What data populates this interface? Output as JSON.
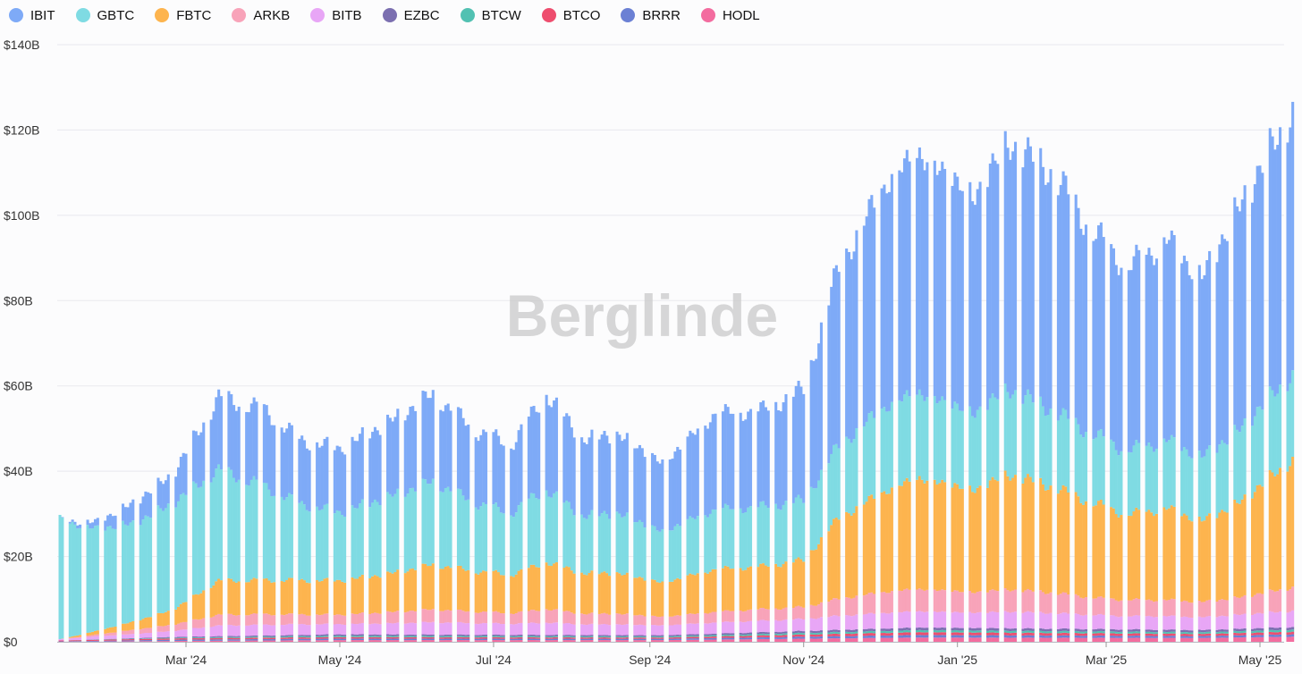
{
  "watermark": "Berglinde",
  "chart_data": {
    "type": "bar",
    "stacked": true,
    "title": "",
    "xlabel": "",
    "ylabel": "",
    "ylim": [
      0,
      140
    ],
    "y_unit": "billion USD",
    "y_ticks": [
      {
        "value": 0,
        "label": "$0"
      },
      {
        "value": 20,
        "label": "$20B"
      },
      {
        "value": 40,
        "label": "$40B"
      },
      {
        "value": 60,
        "label": "$60B"
      },
      {
        "value": 80,
        "label": "$80B"
      },
      {
        "value": 100,
        "label": "$100B"
      },
      {
        "value": 120,
        "label": "$120B"
      },
      {
        "value": 140,
        "label": "$140B"
      }
    ],
    "x_range": [
      "2024-01-11",
      "2025-05-14"
    ],
    "x_ticks": [
      {
        "date": "2024-03-01",
        "label": "Mar '24"
      },
      {
        "date": "2024-05-01",
        "label": "May '24"
      },
      {
        "date": "2024-07-01",
        "label": "Jul '24"
      },
      {
        "date": "2024-09-01",
        "label": "Sep '24"
      },
      {
        "date": "2024-11-01",
        "label": "Nov '24"
      },
      {
        "date": "2025-01-01",
        "label": "Jan '25"
      },
      {
        "date": "2025-03-01",
        "label": "Mar '25"
      },
      {
        "date": "2025-05-01",
        "label": "May '25"
      }
    ],
    "grid": true,
    "legend_position": "top-left",
    "stack_order_bottom_to_top": [
      "HODL",
      "BRRR",
      "BTCO",
      "BTCW",
      "EZBC",
      "BITB",
      "ARKB",
      "FBTC",
      "GBTC",
      "IBIT"
    ],
    "series": [
      {
        "name": "IBIT",
        "color": "#7eaaf7",
        "anchors": [
          [
            "2024-01-11",
            0
          ],
          [
            "2024-01-25",
            1.5
          ],
          [
            "2024-02-10",
            5
          ],
          [
            "2024-02-25",
            7
          ],
          [
            "2024-03-14",
            17
          ],
          [
            "2024-04-01",
            18
          ],
          [
            "2024-04-15",
            15
          ],
          [
            "2024-05-01",
            15
          ],
          [
            "2024-05-20",
            17.5
          ],
          [
            "2024-06-07",
            20.5
          ],
          [
            "2024-06-24",
            17
          ],
          [
            "2024-07-08",
            16
          ],
          [
            "2024-07-15",
            19
          ],
          [
            "2024-07-22",
            22.5
          ],
          [
            "2024-08-05",
            18
          ],
          [
            "2024-08-20",
            18.5
          ],
          [
            "2024-09-06",
            16
          ],
          [
            "2024-09-27",
            22.5
          ],
          [
            "2024-10-15",
            22.5
          ],
          [
            "2024-11-01",
            26
          ],
          [
            "2024-11-15",
            42
          ],
          [
            "2024-12-05",
            53
          ],
          [
            "2024-12-17",
            56
          ],
          [
            "2025-01-08",
            51
          ],
          [
            "2025-01-21",
            58
          ],
          [
            "2025-02-07",
            56
          ],
          [
            "2025-02-25",
            47
          ],
          [
            "2025-03-10",
            43
          ],
          [
            "2025-03-25",
            47
          ],
          [
            "2025-04-08",
            42
          ],
          [
            "2025-04-22",
            52
          ],
          [
            "2025-05-14",
            62
          ]
        ]
      },
      {
        "name": "GBTC",
        "color": "#7fdbe3",
        "anchors": [
          [
            "2024-01-11",
            28
          ],
          [
            "2024-01-25",
            24
          ],
          [
            "2024-02-10",
            23
          ],
          [
            "2024-02-25",
            25
          ],
          [
            "2024-03-14",
            26
          ],
          [
            "2024-04-01",
            22
          ],
          [
            "2024-04-15",
            18
          ],
          [
            "2024-05-01",
            16
          ],
          [
            "2024-05-20",
            18
          ],
          [
            "2024-06-07",
            19.5
          ],
          [
            "2024-06-24",
            16
          ],
          [
            "2024-07-08",
            14.5
          ],
          [
            "2024-07-15",
            16
          ],
          [
            "2024-07-22",
            17
          ],
          [
            "2024-08-05",
            13.5
          ],
          [
            "2024-08-20",
            14
          ],
          [
            "2024-09-06",
            12
          ],
          [
            "2024-09-27",
            14
          ],
          [
            "2024-10-15",
            14
          ],
          [
            "2024-11-01",
            14
          ],
          [
            "2024-11-15",
            17
          ],
          [
            "2024-12-05",
            20
          ],
          [
            "2024-12-17",
            20
          ],
          [
            "2025-01-08",
            18
          ],
          [
            "2025-01-21",
            20
          ],
          [
            "2025-02-07",
            18
          ],
          [
            "2025-02-25",
            16
          ],
          [
            "2025-03-10",
            15
          ],
          [
            "2025-03-25",
            16
          ],
          [
            "2025-04-08",
            15
          ],
          [
            "2025-04-22",
            17
          ],
          [
            "2025-05-14",
            20
          ]
        ]
      },
      {
        "name": "FBTC",
        "color": "#fdb44e",
        "anchors": [
          [
            "2024-01-11",
            0
          ],
          [
            "2024-01-25",
            0.8
          ],
          [
            "2024-02-10",
            2
          ],
          [
            "2024-02-25",
            3.5
          ],
          [
            "2024-03-14",
            8
          ],
          [
            "2024-04-01",
            8
          ],
          [
            "2024-04-15",
            8
          ],
          [
            "2024-05-01",
            8
          ],
          [
            "2024-05-20",
            9
          ],
          [
            "2024-06-07",
            10.5
          ],
          [
            "2024-06-24",
            9.5
          ],
          [
            "2024-07-08",
            9
          ],
          [
            "2024-07-15",
            10
          ],
          [
            "2024-07-22",
            11
          ],
          [
            "2024-08-05",
            9.5
          ],
          [
            "2024-08-20",
            9.5
          ],
          [
            "2024-09-06",
            8
          ],
          [
            "2024-09-27",
            10
          ],
          [
            "2024-10-15",
            10
          ],
          [
            "2024-11-01",
            11
          ],
          [
            "2024-11-15",
            19
          ],
          [
            "2024-12-05",
            24
          ],
          [
            "2024-12-17",
            26
          ],
          [
            "2025-01-08",
            24
          ],
          [
            "2025-01-21",
            27
          ],
          [
            "2025-02-07",
            25
          ],
          [
            "2025-02-25",
            22
          ],
          [
            "2025-03-10",
            20
          ],
          [
            "2025-03-25",
            21.5
          ],
          [
            "2025-04-08",
            19
          ],
          [
            "2025-04-22",
            22
          ],
          [
            "2025-05-14",
            30
          ]
        ]
      },
      {
        "name": "ARKB",
        "color": "#f8a3b9",
        "anchors": [
          [
            "2024-01-11",
            0
          ],
          [
            "2024-01-25",
            0.4
          ],
          [
            "2024-02-10",
            1
          ],
          [
            "2024-02-25",
            1.5
          ],
          [
            "2024-03-14",
            2.5
          ],
          [
            "2024-04-01",
            2.5
          ],
          [
            "2024-04-15",
            2.3
          ],
          [
            "2024-05-01",
            2.2
          ],
          [
            "2024-05-20",
            2.6
          ],
          [
            "2024-06-07",
            3
          ],
          [
            "2024-06-24",
            2.7
          ],
          [
            "2024-07-08",
            2.5
          ],
          [
            "2024-07-15",
            2.8
          ],
          [
            "2024-07-22",
            3.2
          ],
          [
            "2024-08-05",
            2.5
          ],
          [
            "2024-08-20",
            2.5
          ],
          [
            "2024-09-06",
            2
          ],
          [
            "2024-09-27",
            2.5
          ],
          [
            "2024-10-15",
            2.7
          ],
          [
            "2024-11-01",
            2.8
          ],
          [
            "2024-11-15",
            4
          ],
          [
            "2024-12-05",
            5
          ],
          [
            "2024-12-17",
            5.2
          ],
          [
            "2025-01-08",
            4.8
          ],
          [
            "2025-01-21",
            5.2
          ],
          [
            "2025-02-07",
            4.8
          ],
          [
            "2025-02-25",
            4
          ],
          [
            "2025-03-10",
            3.8
          ],
          [
            "2025-03-25",
            3.8
          ],
          [
            "2025-04-08",
            3.6
          ],
          [
            "2025-04-22",
            4
          ],
          [
            "2025-05-14",
            5.5
          ]
        ]
      },
      {
        "name": "BITB",
        "color": "#e8a6f6",
        "anchors": [
          [
            "2024-01-11",
            0.3
          ],
          [
            "2024-01-25",
            0.7
          ],
          [
            "2024-02-10",
            1
          ],
          [
            "2024-02-25",
            1.4
          ],
          [
            "2024-03-14",
            2.5
          ],
          [
            "2024-04-01",
            2.5
          ],
          [
            "2024-04-15",
            2.5
          ],
          [
            "2024-05-01",
            2.4
          ],
          [
            "2024-05-20",
            2.6
          ],
          [
            "2024-06-07",
            2.9
          ],
          [
            "2024-06-24",
            2.7
          ],
          [
            "2024-07-08",
            2.6
          ],
          [
            "2024-07-15",
            2.7
          ],
          [
            "2024-07-22",
            2.9
          ],
          [
            "2024-08-05",
            2.5
          ],
          [
            "2024-08-20",
            2.5
          ],
          [
            "2024-09-06",
            2.3
          ],
          [
            "2024-09-27",
            2.6
          ],
          [
            "2024-10-15",
            2.7
          ],
          [
            "2024-11-01",
            2.8
          ],
          [
            "2024-11-15",
            3.3
          ],
          [
            "2024-12-05",
            3.7
          ],
          [
            "2024-12-17",
            3.8
          ],
          [
            "2025-01-08",
            3.6
          ],
          [
            "2025-01-21",
            3.9
          ],
          [
            "2025-02-07",
            3.7
          ],
          [
            "2025-02-25",
            3.3
          ],
          [
            "2025-03-10",
            3.1
          ],
          [
            "2025-03-25",
            3.2
          ],
          [
            "2025-04-08",
            3
          ],
          [
            "2025-04-22",
            3.3
          ],
          [
            "2025-05-14",
            3.8
          ]
        ]
      },
      {
        "name": "EZBC",
        "color": "#7b6fb0",
        "anchors": [
          [
            "2024-01-11",
            0
          ],
          [
            "2024-02-25",
            0.2
          ],
          [
            "2024-05-01",
            0.35
          ],
          [
            "2024-09-06",
            0.3
          ],
          [
            "2024-12-17",
            0.6
          ],
          [
            "2025-04-08",
            0.5
          ],
          [
            "2025-05-14",
            0.6
          ]
        ]
      },
      {
        "name": "BTCW",
        "color": "#52c1b2",
        "anchors": [
          [
            "2024-01-11",
            0
          ],
          [
            "2024-02-25",
            0.15
          ],
          [
            "2024-05-01",
            0.3
          ],
          [
            "2024-09-06",
            0.25
          ],
          [
            "2024-12-17",
            0.5
          ],
          [
            "2025-04-08",
            0.4
          ],
          [
            "2025-05-14",
            0.5
          ]
        ]
      },
      {
        "name": "BTCO",
        "color": "#ee4d6e",
        "anchors": [
          [
            "2024-01-11",
            0.2
          ],
          [
            "2024-02-25",
            0.3
          ],
          [
            "2024-05-01",
            0.35
          ],
          [
            "2024-09-06",
            0.3
          ],
          [
            "2024-12-17",
            0.65
          ],
          [
            "2025-04-08",
            0.5
          ],
          [
            "2025-05-14",
            0.6
          ]
        ]
      },
      {
        "name": "BRRR",
        "color": "#6b80d4",
        "anchors": [
          [
            "2024-01-11",
            0.1
          ],
          [
            "2024-02-25",
            0.3
          ],
          [
            "2024-05-01",
            0.35
          ],
          [
            "2024-09-06",
            0.3
          ],
          [
            "2024-12-17",
            0.6
          ],
          [
            "2025-04-08",
            0.45
          ],
          [
            "2025-05-14",
            0.55
          ]
        ]
      },
      {
        "name": "HODL",
        "color": "#f36c9f",
        "anchors": [
          [
            "2024-01-11",
            0
          ],
          [
            "2024-02-25",
            0.2
          ],
          [
            "2024-05-01",
            0.4
          ],
          [
            "2024-09-06",
            0.4
          ],
          [
            "2024-12-17",
            1
          ],
          [
            "2025-04-08",
            0.9
          ],
          [
            "2025-05-14",
            1.2
          ]
        ]
      }
    ]
  }
}
